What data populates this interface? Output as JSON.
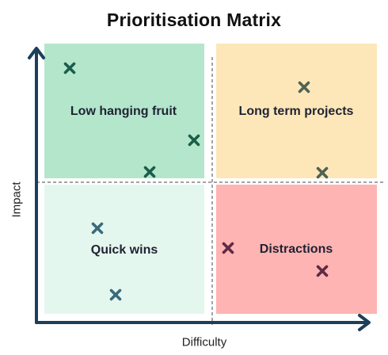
{
  "title": "Prioritisation Matrix",
  "axes": {
    "x_label": "Difficulty",
    "y_label": "Impact"
  },
  "quadrants": [
    {
      "id": "top-left",
      "label": "Low hanging fruit",
      "fill": "#b3e6cb"
    },
    {
      "id": "top-right",
      "label": "Long term projects",
      "fill": "#fde7b9"
    },
    {
      "id": "bottom-left",
      "label": "Quick wins",
      "fill": "#e4f7ee"
    },
    {
      "id": "bottom-right",
      "label": "Distractions",
      "fill": "#fdb4b2"
    }
  ],
  "colors": {
    "axis": "#1e3f5a",
    "divider": "#444444",
    "marker_top_left": "#1a5e4a",
    "marker_top_right": "#4f6354",
    "marker_bottom_left": "#3a6a7a",
    "marker_bottom_right": "#5e2a45"
  },
  "markers": [
    {
      "quadrant": "top-left",
      "icon": "x-mark-icon"
    },
    {
      "quadrant": "top-left",
      "icon": "x-mark-icon"
    },
    {
      "quadrant": "top-left",
      "icon": "x-mark-icon"
    },
    {
      "quadrant": "top-right",
      "icon": "x-mark-icon"
    },
    {
      "quadrant": "top-right",
      "icon": "x-mark-icon"
    },
    {
      "quadrant": "bottom-left",
      "icon": "x-mark-icon"
    },
    {
      "quadrant": "bottom-left",
      "icon": "x-mark-icon"
    },
    {
      "quadrant": "bottom-right",
      "icon": "x-mark-icon"
    },
    {
      "quadrant": "bottom-right",
      "icon": "x-mark-icon"
    }
  ]
}
